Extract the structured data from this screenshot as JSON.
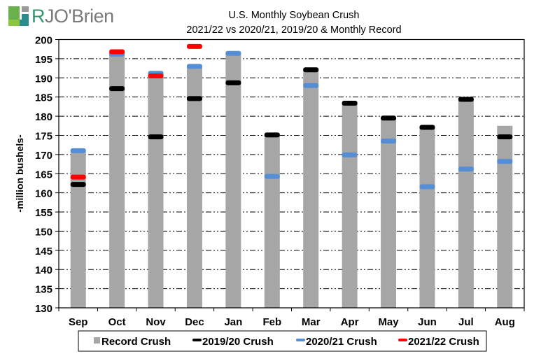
{
  "logo": {
    "text_initial": "R",
    "text_rest": "JO'Brien"
  },
  "chart_data": {
    "type": "bar",
    "title": "U.S. Monthly Soybean Crush",
    "subtitle": "2021/22 vs 2020/21, 2019/20 & Monthly Record",
    "xlabel": "",
    "ylabel": "-million bushels-",
    "ylim": [
      130,
      200
    ],
    "yticks": [
      130,
      135,
      140,
      145,
      150,
      155,
      160,
      165,
      170,
      175,
      180,
      185,
      190,
      195,
      200
    ],
    "grid": true,
    "legend_placement": "bottom",
    "categories": [
      "Sep",
      "Oct",
      "Nov",
      "Dec",
      "Jan",
      "Feb",
      "Mar",
      "Apr",
      "May",
      "Jun",
      "Jul",
      "Aug"
    ],
    "series": [
      {
        "name": "Record Crush",
        "kind": "bar",
        "color": "#a6a6a6",
        "values": [
          171.1,
          196.6,
          191.2,
          193.2,
          196.6,
          175.3,
          192.2,
          183.5,
          179.6,
          177.3,
          184.6,
          177.5
        ]
      },
      {
        "name": "2019/20 Crush",
        "kind": "marker",
        "color": "#000000",
        "values": [
          162.2,
          187.2,
          174.6,
          184.6,
          188.7,
          175.1,
          192.1,
          183.4,
          179.5,
          177.1,
          184.4,
          174.6
        ]
      },
      {
        "name": "2020/21 Crush",
        "kind": "marker",
        "color": "#558ed5",
        "values": [
          171.0,
          196.2,
          191.2,
          193.0,
          196.4,
          164.3,
          188.0,
          169.9,
          173.5,
          161.6,
          166.2,
          168.2
        ]
      },
      {
        "name": "2021/22 Crush",
        "kind": "marker",
        "color": "#ff0000",
        "values": [
          164.1,
          196.8,
          190.5,
          198.2,
          null,
          null,
          null,
          null,
          null,
          null,
          null,
          null
        ]
      }
    ]
  }
}
